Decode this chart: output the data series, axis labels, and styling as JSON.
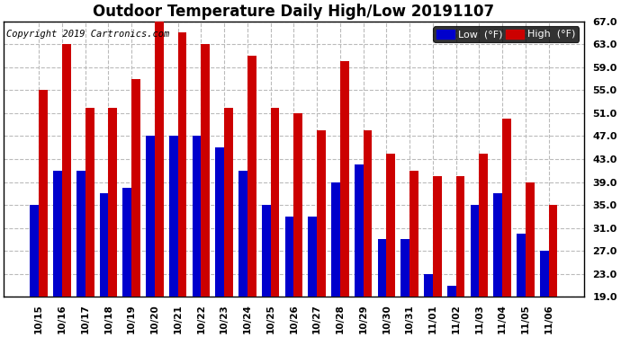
{
  "title": "Outdoor Temperature Daily High/Low 20191107",
  "copyright": "Copyright 2019 Cartronics.com",
  "legend_low": "Low  (°F)",
  "legend_high": "High  (°F)",
  "categories": [
    "10/15",
    "10/16",
    "10/17",
    "10/18",
    "10/19",
    "10/20",
    "10/21",
    "10/22",
    "10/23",
    "10/24",
    "10/25",
    "10/26",
    "10/27",
    "10/28",
    "10/29",
    "10/30",
    "10/31",
    "11/01",
    "11/02",
    "11/03",
    "11/04",
    "11/05",
    "11/06"
  ],
  "lows": [
    35,
    41,
    41,
    37,
    38,
    47,
    47,
    47,
    45,
    41,
    35,
    33,
    33,
    39,
    42,
    29,
    29,
    23,
    21,
    35,
    37,
    30,
    27
  ],
  "highs": [
    55,
    63,
    52,
    52,
    57,
    67,
    65,
    63,
    52,
    61,
    52,
    51,
    48,
    60,
    48,
    44,
    41,
    40,
    40,
    44,
    50,
    39,
    35
  ],
  "ylim_min": 19,
  "ylim_max": 67,
  "yticks": [
    19,
    23,
    27,
    31,
    35,
    39,
    43,
    47,
    51,
    55,
    59,
    63,
    67
  ],
  "low_color": "#0000cc",
  "high_color": "#cc0000",
  "bg_color": "#ffffff",
  "plot_bg_color": "#ffffff",
  "grid_color": "#bbbbbb",
  "title_fontsize": 12,
  "copyright_fontsize": 7.5,
  "bar_width": 0.38
}
